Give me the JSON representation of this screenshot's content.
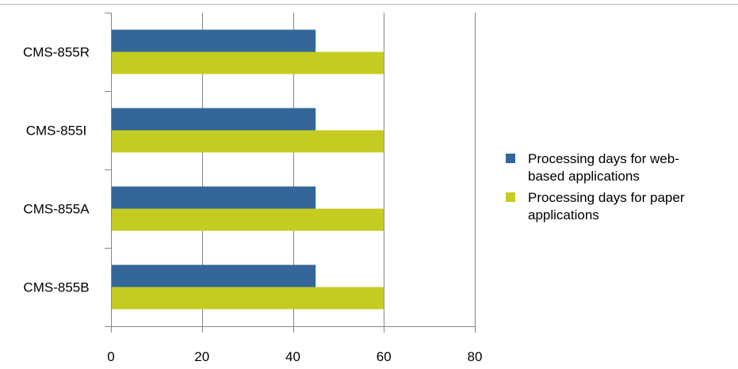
{
  "chart_data": {
    "type": "bar",
    "orientation": "horizontal",
    "categories": [
      "CMS-855R",
      "CMS-855I",
      "CMS-855A",
      "CMS-855B"
    ],
    "series": [
      {
        "name": "Processing days for web-based applications",
        "legend_lines": [
          "Processing days for web-",
          "based applications"
        ],
        "color": "#336699",
        "values": [
          45,
          45,
          45,
          45
        ]
      },
      {
        "name": "Processing days for paper applications",
        "legend_lines": [
          "Processing days for paper",
          "applications"
        ],
        "color": "#c4cc22",
        "values": [
          60,
          60,
          60,
          60
        ]
      }
    ],
    "xlim": [
      0,
      80
    ],
    "xticks": [
      0,
      20,
      40,
      60,
      80
    ],
    "grid": true,
    "legend_position": "right",
    "title": "",
    "xlabel": "",
    "ylabel": ""
  }
}
